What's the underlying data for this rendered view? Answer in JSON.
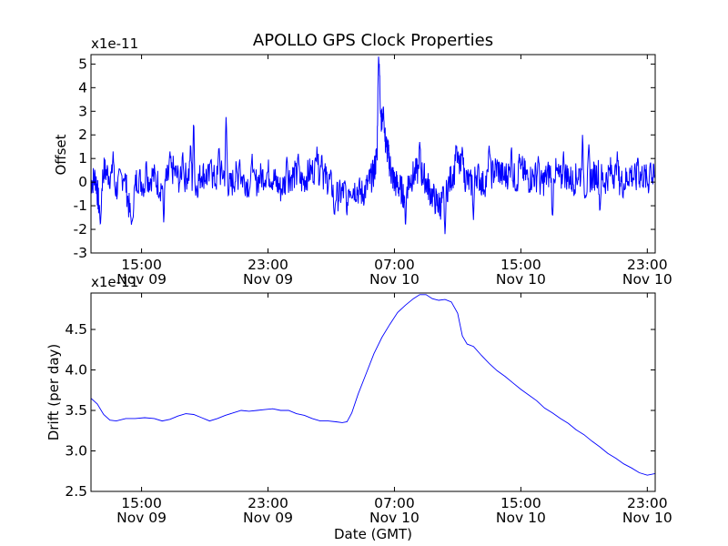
{
  "chart_data": {
    "type": "line",
    "title": "APOLLO GPS Clock Properties",
    "xlabel": "Date (GMT)",
    "colors": {
      "series": "#0000ff",
      "frame": "#000000"
    },
    "x_ticks": [
      {
        "time": "15:00",
        "date": "Nov 09"
      },
      {
        "time": "23:00",
        "date": "Nov 09"
      },
      {
        "time": "07:00",
        "date": "Nov 10"
      },
      {
        "time": "15:00",
        "date": "Nov 10"
      },
      {
        "time": "23:00",
        "date": "Nov 10"
      }
    ],
    "x_ticks_hours": [
      15,
      23,
      31,
      39,
      47
    ],
    "xlim_hours": [
      11.8,
      47.5
    ],
    "panels": [
      {
        "ylabel": "Offset",
        "y_multiplier": "x1e-11",
        "ylim": [
          -3,
          5.4
        ],
        "y_ticks": [
          "-3",
          "-2",
          "-1",
          "0",
          "1",
          "2",
          "3",
          "4",
          "5"
        ],
        "y_tick_values": [
          -3,
          -2,
          -1,
          0,
          1,
          2,
          3,
          4,
          5
        ],
        "grid": false,
        "series": [
          {
            "noisy": true,
            "points": [
              [
                11.8,
                0.0
              ],
              [
                12.1,
                0.2
              ],
              [
                12.3,
                -1.0
              ],
              [
                12.6,
                0.5
              ],
              [
                13.0,
                0.3
              ],
              [
                13.4,
                -0.3
              ],
              [
                13.9,
                0.4
              ],
              [
                14.3,
                -1.5
              ],
              [
                14.7,
                0.2
              ],
              [
                15.2,
                -0.1
              ],
              [
                15.7,
                0.3
              ],
              [
                16.2,
                -0.2
              ],
              [
                16.6,
                0.1
              ],
              [
                17.0,
                0.5
              ],
              [
                17.5,
                0.0
              ],
              [
                18.0,
                0.4
              ],
              [
                18.4,
                -0.3
              ],
              [
                18.8,
                0.4
              ],
              [
                19.2,
                0.2
              ],
              [
                19.7,
                0.1
              ],
              [
                20.2,
                0.4
              ],
              [
                20.6,
                -0.2
              ],
              [
                21.0,
                0.3
              ],
              [
                21.5,
                0.1
              ],
              [
                22.0,
                -0.2
              ],
              [
                22.5,
                0.2
              ],
              [
                23.0,
                0.4
              ],
              [
                23.4,
                0.1
              ],
              [
                23.8,
                -0.3
              ],
              [
                24.3,
                0.2
              ],
              [
                24.7,
                0.3
              ],
              [
                25.2,
                0.0
              ],
              [
                25.6,
                0.4
              ],
              [
                26.1,
                0.6
              ],
              [
                26.5,
                0.3
              ],
              [
                26.9,
                0.0
              ],
              [
                27.4,
                -0.6
              ],
              [
                27.8,
                -0.4
              ],
              [
                28.2,
                -0.2
              ],
              [
                28.6,
                -0.3
              ],
              [
                29.0,
                -0.5
              ],
              [
                29.4,
                0.0
              ],
              [
                29.7,
                0.4
              ],
              [
                29.9,
                1.2
              ],
              [
                30.05,
                4.2
              ],
              [
                30.2,
                2.4
              ],
              [
                30.4,
                1.8
              ],
              [
                30.6,
                1.2
              ],
              [
                30.8,
                0.4
              ],
              [
                31.0,
                0.0
              ],
              [
                31.3,
                -0.2
              ],
              [
                31.6,
                -0.5
              ],
              [
                31.9,
                0.0
              ],
              [
                32.2,
                0.3
              ],
              [
                32.6,
                0.5
              ],
              [
                32.9,
                0.2
              ],
              [
                33.2,
                -0.3
              ],
              [
                33.6,
                -0.8
              ],
              [
                33.9,
                -1.0
              ],
              [
                34.2,
                -0.5
              ],
              [
                34.6,
                0.2
              ],
              [
                35.0,
                0.8
              ],
              [
                35.4,
                0.3
              ],
              [
                35.8,
                -0.1
              ],
              [
                36.2,
                0.4
              ],
              [
                36.6,
                -0.1
              ],
              [
                37.1,
                0.3
              ],
              [
                37.5,
                0.6
              ],
              [
                37.9,
                0.2
              ],
              [
                38.3,
                0.4
              ],
              [
                38.7,
                0.1
              ],
              [
                39.1,
                0.5
              ],
              [
                39.5,
                0.1
              ],
              [
                39.9,
                0.3
              ],
              [
                40.3,
                -0.1
              ],
              [
                40.7,
                0.3
              ],
              [
                41.1,
                0.5
              ],
              [
                41.5,
                0.1
              ],
              [
                41.9,
                0.3
              ],
              [
                42.3,
                0.0
              ],
              [
                42.7,
                0.4
              ],
              [
                43.1,
                -0.2
              ],
              [
                43.5,
                0.2
              ],
              [
                43.9,
                0.4
              ],
              [
                44.3,
                0.0
              ],
              [
                44.7,
                0.5
              ],
              [
                45.1,
                0.2
              ],
              [
                45.5,
                -0.1
              ],
              [
                45.9,
                0.4
              ],
              [
                46.3,
                0.1
              ],
              [
                46.7,
                0.3
              ],
              [
                47.1,
                0.0
              ],
              [
                47.5,
                0.2
              ]
            ],
            "spikes": [
              [
                12.4,
                -1.9
              ],
              [
                13.2,
                1.3
              ],
              [
                14.4,
                -1.85
              ],
              [
                15.3,
                1.0
              ],
              [
                16.4,
                -1.7
              ],
              [
                16.8,
                1.3
              ],
              [
                17.6,
                1.4
              ],
              [
                18.1,
                1.7
              ],
              [
                18.3,
                2.8
              ],
              [
                19.4,
                1.2
              ],
              [
                19.9,
                1.7
              ],
              [
                20.35,
                2.95
              ],
              [
                21.2,
                1.1
              ],
              [
                22.0,
                1.2
              ],
              [
                24.2,
                1.2
              ],
              [
                24.9,
                1.3
              ],
              [
                26.1,
                1.5
              ],
              [
                26.4,
                1.3
              ],
              [
                27.2,
                -1.6
              ],
              [
                28.0,
                -1.4
              ],
              [
                30.0,
                5.4
              ],
              [
                30.3,
                3.2
              ],
              [
                31.7,
                -1.9
              ],
              [
                32.6,
                1.7
              ],
              [
                34.2,
                -2.2
              ],
              [
                34.9,
                1.7
              ],
              [
                35.3,
                1.6
              ],
              [
                36.0,
                -1.6
              ],
              [
                37.0,
                1.7
              ],
              [
                38.4,
                1.6
              ],
              [
                38.9,
                1.2
              ],
              [
                40.1,
                1.1
              ],
              [
                41.0,
                -1.8
              ],
              [
                41.7,
                1.3
              ],
              [
                42.9,
                2.0
              ],
              [
                43.3,
                1.6
              ],
              [
                44.0,
                -1.4
              ],
              [
                45.1,
                1.3
              ],
              [
                46.4,
                1.2
              ],
              [
                47.2,
                1.0
              ]
            ]
          }
        ]
      },
      {
        "ylabel": "Drift (per day)",
        "y_multiplier": "x1e-11",
        "ylim": [
          2.5,
          4.95
        ],
        "y_ticks": [
          "2.5",
          "3.0",
          "3.5",
          "4.0",
          "4.5"
        ],
        "y_tick_values": [
          2.5,
          3.0,
          3.5,
          4.0,
          4.5
        ],
        "grid": false,
        "series": [
          {
            "noisy": false,
            "points": [
              [
                11.8,
                3.65
              ],
              [
                12.2,
                3.58
              ],
              [
                12.6,
                3.45
              ],
              [
                13.0,
                3.38
              ],
              [
                13.4,
                3.37
              ],
              [
                14.0,
                3.4
              ],
              [
                14.6,
                3.4
              ],
              [
                15.2,
                3.41
              ],
              [
                15.8,
                3.4
              ],
              [
                16.3,
                3.37
              ],
              [
                16.8,
                3.39
              ],
              [
                17.3,
                3.43
              ],
              [
                17.8,
                3.46
              ],
              [
                18.3,
                3.45
              ],
              [
                18.8,
                3.41
              ],
              [
                19.3,
                3.37
              ],
              [
                19.8,
                3.4
              ],
              [
                20.3,
                3.44
              ],
              [
                20.8,
                3.47
              ],
              [
                21.3,
                3.5
              ],
              [
                21.8,
                3.49
              ],
              [
                22.3,
                3.5
              ],
              [
                22.8,
                3.51
              ],
              [
                23.3,
                3.52
              ],
              [
                23.8,
                3.5
              ],
              [
                24.3,
                3.5
              ],
              [
                24.8,
                3.46
              ],
              [
                25.3,
                3.44
              ],
              [
                25.8,
                3.4
              ],
              [
                26.3,
                3.37
              ],
              [
                26.8,
                3.37
              ],
              [
                27.3,
                3.36
              ],
              [
                27.7,
                3.35
              ],
              [
                28.0,
                3.36
              ],
              [
                28.3,
                3.47
              ],
              [
                28.7,
                3.7
              ],
              [
                29.2,
                3.95
              ],
              [
                29.7,
                4.2
              ],
              [
                30.2,
                4.4
              ],
              [
                30.7,
                4.56
              ],
              [
                31.2,
                4.71
              ],
              [
                31.7,
                4.8
              ],
              [
                32.2,
                4.88
              ],
              [
                32.6,
                4.93
              ],
              [
                33.0,
                4.93
              ],
              [
                33.4,
                4.88
              ],
              [
                33.8,
                4.86
              ],
              [
                34.2,
                4.87
              ],
              [
                34.6,
                4.84
              ],
              [
                35.0,
                4.7
              ],
              [
                35.3,
                4.42
              ],
              [
                35.6,
                4.32
              ],
              [
                36.0,
                4.29
              ],
              [
                36.5,
                4.18
              ],
              [
                37.0,
                4.08
              ],
              [
                37.5,
                3.99
              ],
              [
                38.0,
                3.92
              ],
              [
                38.5,
                3.84
              ],
              [
                39.0,
                3.76
              ],
              [
                39.5,
                3.69
              ],
              [
                40.0,
                3.62
              ],
              [
                40.5,
                3.53
              ],
              [
                41.0,
                3.47
              ],
              [
                41.5,
                3.4
              ],
              [
                42.0,
                3.34
              ],
              [
                42.5,
                3.26
              ],
              [
                43.0,
                3.2
              ],
              [
                43.5,
                3.12
              ],
              [
                44.0,
                3.05
              ],
              [
                44.5,
                2.97
              ],
              [
                45.0,
                2.91
              ],
              [
                45.5,
                2.84
              ],
              [
                46.0,
                2.79
              ],
              [
                46.5,
                2.73
              ],
              [
                47.0,
                2.7
              ],
              [
                47.5,
                2.72
              ]
            ]
          }
        ]
      }
    ]
  }
}
